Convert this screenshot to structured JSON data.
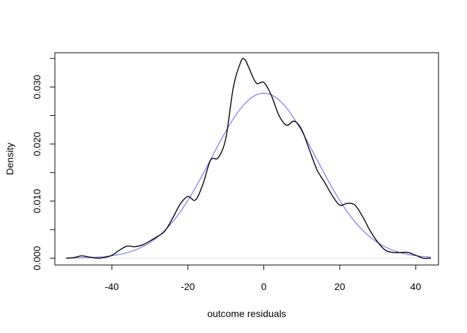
{
  "chart_data": {
    "type": "line",
    "title": "",
    "xlabel": "outcome residuals",
    "ylabel": "Density",
    "xlim": [
      -55,
      46
    ],
    "ylim": [
      -0.0012,
      0.036
    ],
    "grid": false,
    "legend": "none",
    "x_ticks": [
      -40,
      -20,
      0,
      20,
      40
    ],
    "x_tick_labels": [
      "-40",
      "-20",
      "0",
      "20",
      "40"
    ],
    "y_ticks_labeled": [
      0.0,
      0.01,
      0.02,
      0.03
    ],
    "y_tick_labels": [
      "0.000",
      "0.010",
      "0.020",
      "0.030"
    ],
    "y_ticks_minor": [
      0.005,
      0.015,
      0.025,
      0.035
    ],
    "baseline": 0,
    "series": [
      {
        "kind": "kernel-density",
        "color": "#000000",
        "x": [
          -52,
          -50,
          -48,
          -46,
          -44,
          -42,
          -40,
          -38,
          -36,
          -34,
          -32,
          -30,
          -28,
          -26,
          -24,
          -22,
          -20,
          -18,
          -16,
          -14,
          -12,
          -10,
          -8,
          -6,
          -5,
          -4,
          -2,
          0,
          2,
          4,
          6,
          8,
          10,
          12,
          14,
          16,
          18,
          20,
          22,
          24,
          26,
          28,
          30,
          32,
          34,
          36,
          38,
          40,
          42,
          44
        ],
        "y": [
          0.0,
          0.0001,
          0.0004,
          0.0002,
          0.0,
          0.0001,
          0.0005,
          0.0014,
          0.0021,
          0.002,
          0.0023,
          0.003,
          0.0038,
          0.0048,
          0.007,
          0.0095,
          0.0108,
          0.0102,
          0.013,
          0.0172,
          0.0176,
          0.021,
          0.03,
          0.0345,
          0.0348,
          0.0335,
          0.0307,
          0.0308,
          0.0285,
          0.025,
          0.0233,
          0.024,
          0.0225,
          0.019,
          0.0155,
          0.0133,
          0.011,
          0.0093,
          0.0096,
          0.0093,
          0.0073,
          0.0048,
          0.0028,
          0.0014,
          0.001,
          0.001,
          0.001,
          0.0005,
          0.0,
          0.0
        ]
      },
      {
        "kind": "normal",
        "color": "#7777ee",
        "mean": 0,
        "sd": 13.8,
        "x_range": [
          -52,
          44
        ]
      }
    ]
  }
}
